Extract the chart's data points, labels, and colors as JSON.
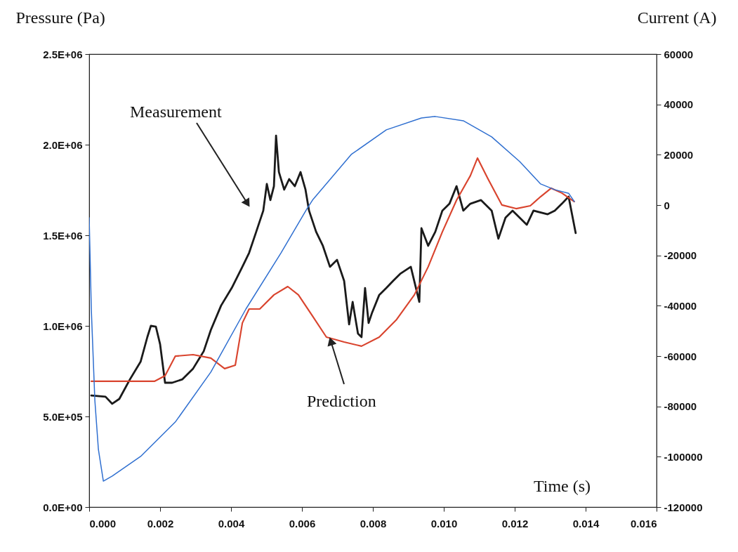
{
  "chart_data": {
    "type": "line",
    "xlabel": "Time (s)",
    "ylabel": "Pressure (Pa)",
    "y2label": "Current (A)",
    "xlim": [
      0,
      0.016
    ],
    "xticks": [
      {
        "value": 0,
        "label": "0.000"
      },
      {
        "value": 0.002,
        "label": "0.002"
      },
      {
        "value": 0.004,
        "label": "0.004"
      },
      {
        "value": 0.006,
        "label": "0.006"
      },
      {
        "value": 0.008,
        "label": "0.008"
      },
      {
        "value": 0.01,
        "label": "0.010"
      },
      {
        "value": 0.012,
        "label": "0.012"
      },
      {
        "value": 0.014,
        "label": "0.014"
      },
      {
        "value": 0.016,
        "label": "0.016"
      }
    ],
    "ylim": [
      0,
      2500000
    ],
    "yticks": [
      {
        "value": 0,
        "label": "0.0E+00"
      },
      {
        "value": 500000,
        "label": "5.0E+05"
      },
      {
        "value": 1000000,
        "label": "1.0E+06"
      },
      {
        "value": 1500000,
        "label": "1.5E+06"
      },
      {
        "value": 2000000,
        "label": "2.0E+06"
      },
      {
        "value": 2500000,
        "label": "2.5E+06"
      }
    ],
    "y2lim": [
      -120000,
      60000
    ],
    "y2ticks": [
      -120000,
      -100000,
      -80000,
      -60000,
      -40000,
      -20000,
      0,
      20000,
      40000,
      60000
    ],
    "series": [
      {
        "name": "Measurement",
        "color": "#1a1a1a",
        "x": [
          6e-05,
          0.00046,
          0.00065,
          0.00085,
          0.00115,
          0.00145,
          0.00164,
          0.00174,
          0.00188,
          0.002,
          0.00214,
          0.00234,
          0.00263,
          0.00293,
          0.00323,
          0.00343,
          0.00372,
          0.00402,
          0.00432,
          0.00451,
          0.00471,
          0.00491,
          0.00501,
          0.00511,
          0.00521,
          0.00527,
          0.00535,
          0.0055,
          0.00564,
          0.0058,
          0.00596,
          0.0061,
          0.0062,
          0.0064,
          0.00659,
          0.00679,
          0.00699,
          0.00719,
          0.00733,
          0.00743,
          0.00758,
          0.00768,
          0.00778,
          0.00788,
          0.00798,
          0.00818,
          0.00838,
          0.00857,
          0.00877,
          0.00907,
          0.00931,
          0.00937,
          0.00956,
          0.00976,
          0.00996,
          0.01016,
          0.01036,
          0.01055,
          0.01075,
          0.01105,
          0.01135,
          0.01154,
          0.01174,
          0.01194,
          0.01214,
          0.01234,
          0.01253,
          0.01293,
          0.01313,
          0.01333,
          0.01352,
          0.01372
        ],
        "values": [
          616000,
          609000,
          570000,
          597000,
          705000,
          802000,
          938000,
          1000000,
          996000,
          899000,
          686000,
          686000,
          705000,
          764000,
          860000,
          977000,
          1112000,
          1209000,
          1326000,
          1403000,
          1519000,
          1636000,
          1783000,
          1694000,
          1771000,
          2050000,
          1849000,
          1752000,
          1810000,
          1771000,
          1849000,
          1752000,
          1636000,
          1519000,
          1442000,
          1326000,
          1364000,
          1248000,
          1008000,
          1132000,
          957000,
          938000,
          1209000,
          1016000,
          1074000,
          1171000,
          1209000,
          1248000,
          1287000,
          1326000,
          1132000,
          1539000,
          1442000,
          1519000,
          1636000,
          1674000,
          1771000,
          1636000,
          1674000,
          1694000,
          1636000,
          1481000,
          1597000,
          1636000,
          1597000,
          1558000,
          1636000,
          1616000,
          1636000,
          1674000,
          1713000,
          1512000
        ]
      },
      {
        "name": "Prediction",
        "color": "#d9442e",
        "x": [
          6e-05,
          0.00184,
          0.00214,
          0.00243,
          0.00293,
          0.00343,
          0.00382,
          0.00412,
          0.00432,
          0.00451,
          0.00481,
          0.00521,
          0.0056,
          0.0059,
          0.0063,
          0.00669,
          0.00719,
          0.00768,
          0.00818,
          0.00867,
          0.00917,
          0.00956,
          0.00996,
          0.01036,
          0.01075,
          0.01095,
          0.01125,
          0.01164,
          0.01204,
          0.01244,
          0.01273,
          0.01303,
          0.01333,
          0.01368
        ],
        "values": [
          694000,
          694000,
          725000,
          833000,
          841000,
          822000,
          764000,
          783000,
          1016000,
          1093000,
          1093000,
          1171000,
          1217000,
          1171000,
          1054000,
          938000,
          911000,
          888000,
          938000,
          1035000,
          1171000,
          1326000,
          1519000,
          1694000,
          1829000,
          1926000,
          1810000,
          1667000,
          1647000,
          1663000,
          1713000,
          1760000,
          1733000,
          1686000
        ]
      },
      {
        "color": "#2f6fd0",
        "axis": "y2",
        "x": [
          0,
          6e-05,
          0.00016,
          0.00026,
          0.0004,
          0.00065,
          0.00145,
          0.00244,
          0.00343,
          0.00442,
          0.00541,
          0.00614,
          0.0063,
          0.00739,
          0.00838,
          0.00937,
          0.00976,
          0.01055,
          0.01135,
          0.01214,
          0.01273,
          0.01313,
          0.01352,
          0.01368
        ],
        "values": [
          -5000,
          -41300,
          -77600,
          -97100,
          -109700,
          -107700,
          -99900,
          -86000,
          -66400,
          -41300,
          -19000,
          -1500,
          2000,
          20100,
          29900,
          34600,
          35200,
          33500,
          27100,
          17300,
          8400,
          6100,
          4700,
          1400
        ]
      }
    ]
  }
}
